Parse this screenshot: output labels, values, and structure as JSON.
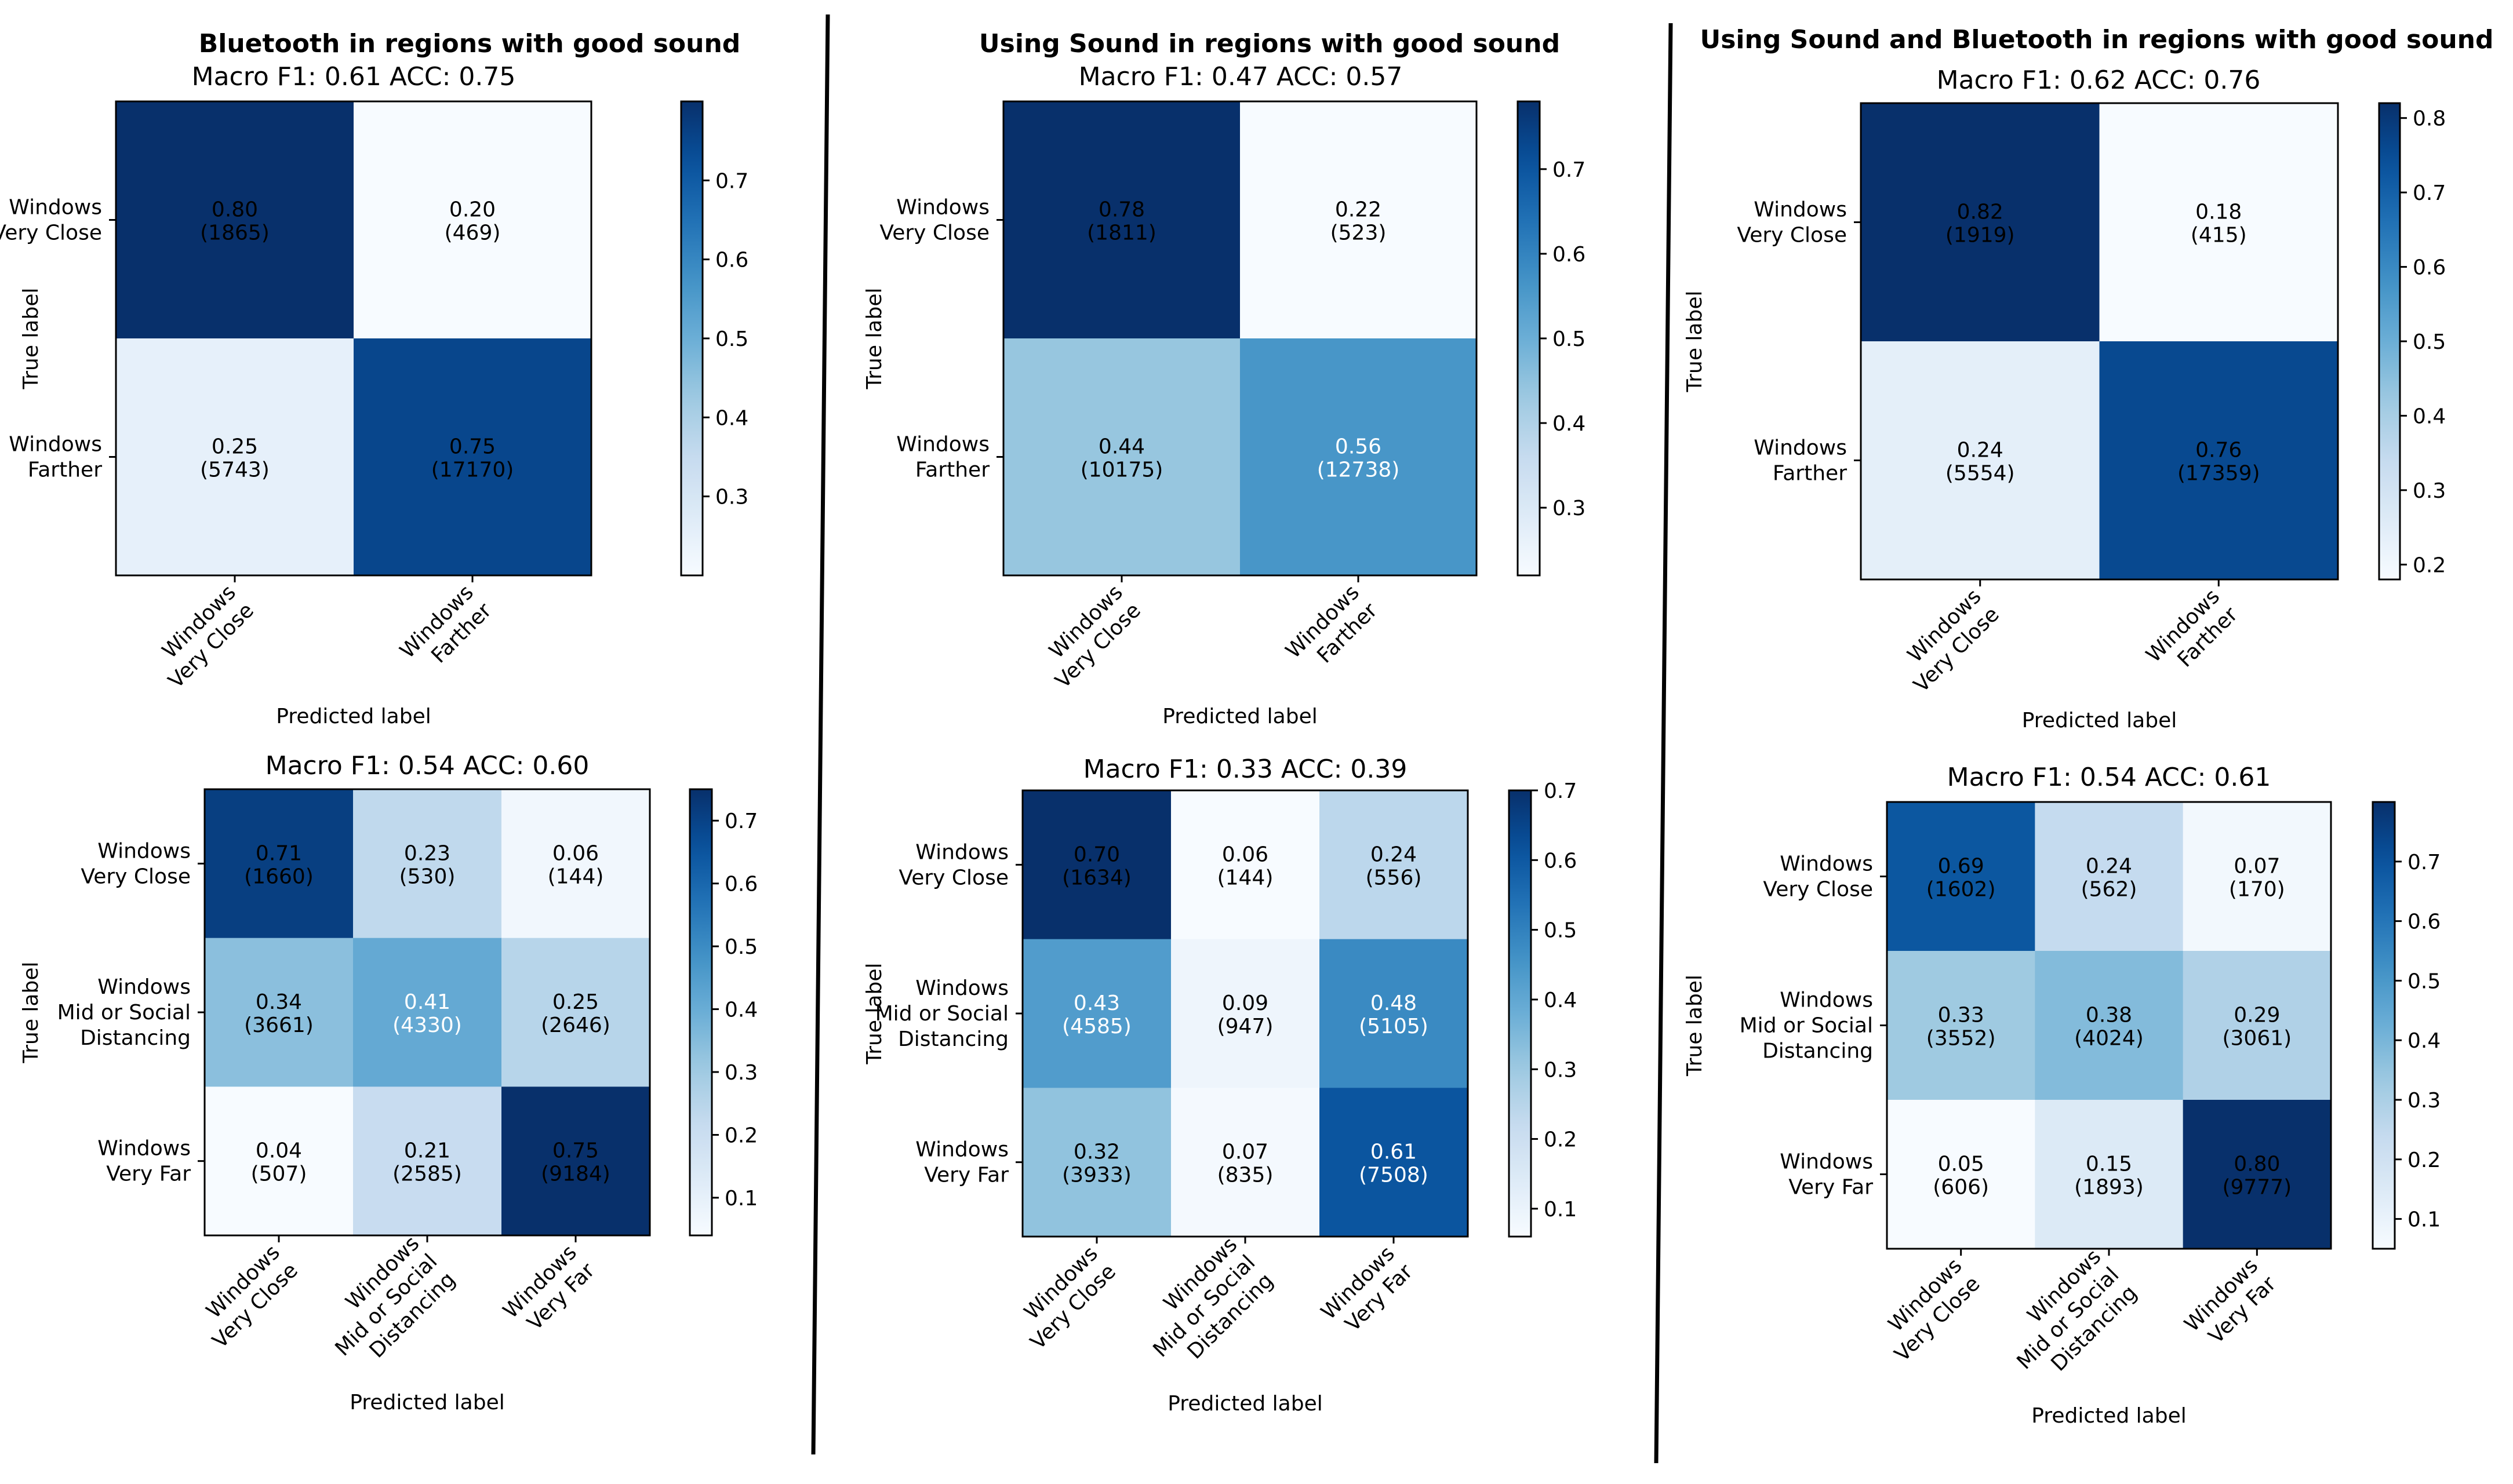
{
  "chart_data": [
    {
      "type": "heatmap",
      "group_title": "Bluetooth in regions with good sound",
      "title": "Macro F1: 0.61 ACC: 0.75",
      "xlabel": "Predicted label",
      "ylabel": "True label",
      "classes": [
        [
          "Windows",
          "Very Close"
        ],
        [
          "Windows",
          "Farther"
        ]
      ],
      "values": [
        [
          0.8,
          0.2
        ],
        [
          0.25,
          0.75
        ]
      ],
      "counts": [
        [
          "1865",
          "469"
        ],
        [
          "5743",
          "17170"
        ]
      ],
      "colorbar": {
        "range": [
          0.2,
          0.8
        ],
        "ticks": [
          0.3,
          0.4,
          0.5,
          0.6,
          0.7
        ]
      }
    },
    {
      "type": "heatmap",
      "group_title": "Using Sound in regions with good sound",
      "title": "Macro F1: 0.47 ACC: 0.57",
      "xlabel": "Predicted label",
      "ylabel": "True label",
      "classes": [
        [
          "Windows",
          "Very Close"
        ],
        [
          "Windows",
          "Farther"
        ]
      ],
      "values": [
        [
          0.78,
          0.22
        ],
        [
          0.44,
          0.56
        ]
      ],
      "counts": [
        [
          "1811",
          "523"
        ],
        [
          "10175",
          "12738"
        ]
      ],
      "colorbar": {
        "range": [
          0.22,
          0.78
        ],
        "ticks": [
          0.3,
          0.4,
          0.5,
          0.6,
          0.7
        ]
      }
    },
    {
      "type": "heatmap",
      "group_title": "Using Sound and Bluetooth in regions with good sound",
      "title": "Macro F1: 0.62 ACC: 0.76",
      "xlabel": "Predicted label",
      "ylabel": "True label",
      "classes": [
        [
          "Windows",
          "Very Close"
        ],
        [
          "Windows",
          "Farther"
        ]
      ],
      "values": [
        [
          0.82,
          0.18
        ],
        [
          0.24,
          0.76
        ]
      ],
      "counts": [
        [
          "1919",
          "415"
        ],
        [
          "5554",
          "17359"
        ]
      ],
      "colorbar": {
        "range": [
          0.18,
          0.82
        ],
        "ticks": [
          0.2,
          0.3,
          0.4,
          0.5,
          0.6,
          0.7,
          0.8
        ]
      }
    },
    {
      "type": "heatmap",
      "group_title": "",
      "title": "Macro F1: 0.54 ACC: 0.60",
      "xlabel": "Predicted label",
      "ylabel": "True label",
      "classes": [
        [
          "Windows",
          "Very Close"
        ],
        [
          "Windows",
          "Mid or Social",
          "Distancing"
        ],
        [
          "Windows",
          "Very Far"
        ]
      ],
      "values": [
        [
          0.71,
          0.23,
          0.06
        ],
        [
          0.34,
          0.41,
          0.25
        ],
        [
          0.04,
          0.21,
          0.75
        ]
      ],
      "counts": [
        [
          "1660",
          "530",
          "144"
        ],
        [
          "3661",
          "4330",
          "2646"
        ],
        [
          "507",
          "2585",
          "9184"
        ]
      ],
      "colorbar": {
        "range": [
          0.04,
          0.75
        ],
        "ticks": [
          0.1,
          0.2,
          0.3,
          0.4,
          0.5,
          0.6,
          0.7
        ]
      }
    },
    {
      "type": "heatmap",
      "group_title": "",
      "title": "Macro F1: 0.33 ACC: 0.39",
      "xlabel": "Predicted label",
      "ylabel": "True label",
      "classes": [
        [
          "Windows",
          "Very Close"
        ],
        [
          "Windows",
          "Mid or Social",
          "Distancing"
        ],
        [
          "Windows",
          "Very Far"
        ]
      ],
      "values": [
        [
          0.7,
          0.06,
          0.24
        ],
        [
          0.43,
          0.09,
          0.48
        ],
        [
          0.32,
          0.07,
          0.61
        ]
      ],
      "counts": [
        [
          "1634",
          "144",
          "556"
        ],
        [
          "4585",
          "947",
          "5105"
        ],
        [
          "3933",
          "835",
          "7508"
        ]
      ],
      "colorbar": {
        "range": [
          0.06,
          0.7
        ],
        "ticks": [
          0.1,
          0.2,
          0.3,
          0.4,
          0.5,
          0.6,
          0.7
        ]
      }
    },
    {
      "type": "heatmap",
      "group_title": "",
      "title": "Macro F1: 0.54 ACC: 0.61",
      "xlabel": "Predicted label",
      "ylabel": "True label",
      "classes": [
        [
          "Windows",
          "Very Close"
        ],
        [
          "Windows",
          "Mid or Social",
          "Distancing"
        ],
        [
          "Windows",
          "Very Far"
        ]
      ],
      "values": [
        [
          0.69,
          0.24,
          0.07
        ],
        [
          0.33,
          0.38,
          0.29
        ],
        [
          0.05,
          0.15,
          0.8
        ]
      ],
      "counts": [
        [
          "1602",
          "562",
          "170"
        ],
        [
          "3552",
          "4024",
          "3061"
        ],
        [
          "606",
          "1893",
          "9777"
        ]
      ],
      "colorbar": {
        "range": [
          0.05,
          0.8
        ],
        "ticks": [
          0.1,
          0.2,
          0.3,
          0.4,
          0.5,
          0.6,
          0.7
        ]
      }
    }
  ]
}
